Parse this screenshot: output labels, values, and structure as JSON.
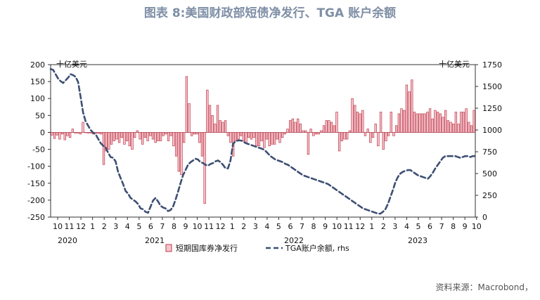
{
  "title": "图表 8:美国财政部短债净发行、TGA 账户余额",
  "source": "资料来源：Macrobond，",
  "colors": {
    "bar_fill": "#f4c6cc",
    "bar_stroke": "#c0394b",
    "line": "#3d4f73",
    "title": "#7f8fa6"
  },
  "chart_data": {
    "type": "bar",
    "left_unit": "十亿美元",
    "right_unit": "十亿美元",
    "ylim_left": [
      -250,
      200
    ],
    "ylim_right": [
      0,
      1750
    ],
    "yticks_left": [
      "200",
      "150",
      "100",
      "50",
      "0",
      "-50",
      "-100",
      "-150",
      "-200",
      "-250"
    ],
    "yticks_right": [
      "1750",
      "1500",
      "1250",
      "1000",
      "750",
      "500",
      "250",
      "0"
    ],
    "month_ticks": [
      "10",
      "11",
      "12",
      "1",
      "2",
      "3",
      "4",
      "5",
      "6",
      "7",
      "8",
      "9",
      "10",
      "11",
      "12",
      "1",
      "2",
      "3",
      "4",
      "5",
      "6",
      "7",
      "8",
      "9",
      "10",
      "11",
      "12",
      "1",
      "2",
      "3",
      "4",
      "5",
      "6",
      "7",
      "8",
      "9",
      "10"
    ],
    "year_labels": [
      "2020",
      "2021",
      "2022",
      "2023"
    ],
    "legend": {
      "bars": "短期国库券净发行",
      "line": "TGA账户余额, rhs"
    },
    "bar_series": {
      "name": "短期国库券净发行",
      "values": [
        -8,
        -18,
        -8,
        -20,
        -5,
        -22,
        -10,
        -15,
        10,
        -2,
        -2,
        -5,
        30,
        0,
        -2,
        -2,
        -5,
        -3,
        -3,
        -5,
        -95,
        -55,
        -50,
        -35,
        -25,
        -20,
        -30,
        -15,
        -35,
        -25,
        -40,
        -50,
        -15,
        5,
        -20,
        -35,
        -15,
        -25,
        -10,
        -20,
        -30,
        -25,
        -25,
        -10,
        -5,
        -25,
        -10,
        -40,
        -70,
        -115,
        -125,
        -30,
        165,
        85,
        -10,
        -5,
        -5,
        -30,
        -70,
        -210,
        125,
        80,
        50,
        25,
        80,
        35,
        30,
        35,
        -10,
        -30,
        -70,
        -25,
        -20,
        -10,
        -25,
        -30,
        -15,
        -20,
        -15,
        -40,
        -40,
        -25,
        -45,
        -20,
        -40,
        -35,
        -35,
        -20,
        -30,
        -15,
        -5,
        10,
        35,
        40,
        30,
        40,
        25,
        5,
        5,
        -65,
        10,
        -10,
        -5,
        -5,
        5,
        20,
        35,
        35,
        30,
        20,
        60,
        -55,
        -25,
        -20,
        -20,
        5,
        100,
        80,
        60,
        55,
        65,
        -10,
        10,
        -30,
        -15,
        25,
        -40,
        60,
        -50,
        -25,
        -10,
        60,
        -10,
        20,
        55,
        70,
        65,
        140,
        120,
        155,
        60,
        55,
        55,
        55,
        55,
        60,
        70,
        40,
        65,
        60,
        55,
        45,
        65,
        35,
        30,
        25,
        60,
        25,
        60,
        60,
        70,
        30,
        20,
        65
      ]
    },
    "line_series": {
      "name": "TGA账户余额, rhs",
      "values": [
        1700,
        1690,
        1640,
        1590,
        1560,
        1540,
        1570,
        1600,
        1640,
        1630,
        1610,
        1550,
        1380,
        1200,
        1100,
        1050,
        1000,
        970,
        950,
        900,
        850,
        820,
        800,
        740,
        690,
        680,
        640,
        520,
        450,
        380,
        300,
        270,
        220,
        200,
        180,
        150,
        100,
        90,
        60,
        50,
        120,
        190,
        220,
        180,
        130,
        110,
        100,
        70,
        80,
        120,
        200,
        290,
        390,
        480,
        540,
        600,
        630,
        650,
        670,
        660,
        630,
        620,
        600,
        590,
        610,
        620,
        640,
        650,
        630,
        600,
        560,
        560,
        650,
        840,
        870,
        880,
        880,
        870,
        850,
        840,
        830,
        820,
        810,
        800,
        790,
        780,
        760,
        730,
        700,
        680,
        660,
        650,
        640,
        630,
        610,
        600,
        580,
        560,
        540,
        520,
        500,
        480,
        470,
        460,
        450,
        440,
        430,
        420,
        410,
        400,
        390,
        380,
        360,
        340,
        320,
        300,
        280,
        260,
        240,
        220,
        200,
        180,
        160,
        140,
        120,
        100,
        90,
        80,
        70,
        60,
        50,
        40,
        40,
        60,
        90,
        150,
        230,
        310,
        400,
        460,
        500,
        520,
        530,
        540,
        540,
        520,
        500,
        480,
        470,
        460,
        450,
        440,
        470,
        510,
        560,
        600,
        640,
        680,
        700,
        700,
        700,
        700,
        700,
        690,
        680,
        690,
        700,
        700,
        690,
        700,
        700
      ]
    }
  }
}
